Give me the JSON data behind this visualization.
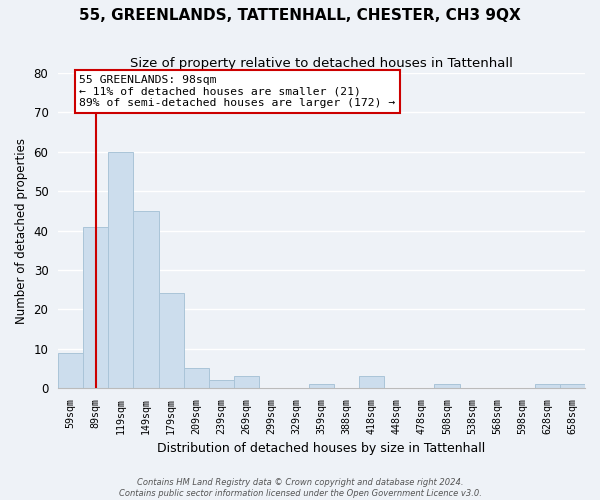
{
  "title": "55, GREENLANDS, TATTENHALL, CHESTER, CH3 9QX",
  "subtitle": "Size of property relative to detached houses in Tattenhall",
  "xlabel": "Distribution of detached houses by size in Tattenhall",
  "ylabel": "Number of detached properties",
  "bar_labels": [
    "59sqm",
    "89sqm",
    "119sqm",
    "149sqm",
    "179sqm",
    "209sqm",
    "239sqm",
    "269sqm",
    "299sqm",
    "329sqm",
    "359sqm",
    "388sqm",
    "418sqm",
    "448sqm",
    "478sqm",
    "508sqm",
    "538sqm",
    "568sqm",
    "598sqm",
    "628sqm",
    "658sqm"
  ],
  "bar_heights": [
    9,
    41,
    60,
    45,
    24,
    5,
    2,
    3,
    0,
    0,
    1,
    0,
    3,
    0,
    0,
    1,
    0,
    0,
    0,
    1,
    1
  ],
  "bar_color": "#ccdded",
  "bar_edge_color": "#aac4d8",
  "vline_x": 1.0,
  "vline_color": "#cc0000",
  "annotation_title": "55 GREENLANDS: 98sqm",
  "annotation_line1": "← 11% of detached houses are smaller (21)",
  "annotation_line2": "89% of semi-detached houses are larger (172) →",
  "annotation_box_facecolor": "#ffffff",
  "annotation_box_edgecolor": "#cc0000",
  "ylim": [
    0,
    80
  ],
  "yticks": [
    0,
    10,
    20,
    30,
    40,
    50,
    60,
    70,
    80
  ],
  "footer1": "Contains HM Land Registry data © Crown copyright and database right 2024.",
  "footer2": "Contains public sector information licensed under the Open Government Licence v3.0.",
  "bg_color": "#eef2f7",
  "grid_color": "#ffffff",
  "title_fontsize": 11,
  "subtitle_fontsize": 9.5,
  "ylabel_fontsize": 8.5,
  "xlabel_fontsize": 9
}
